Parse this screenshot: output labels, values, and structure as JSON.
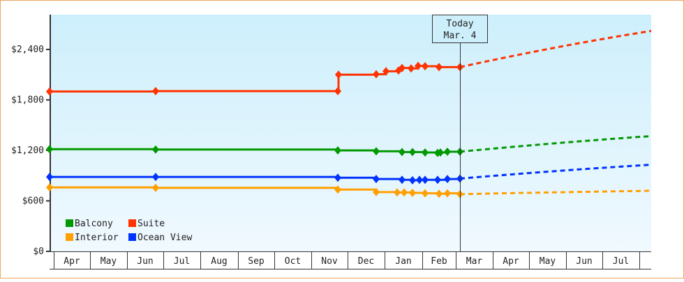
{
  "chart_data": {
    "type": "line",
    "title": "",
    "xlabel": "",
    "ylabel": "",
    "ylim": [
      0,
      2640
    ],
    "y_ticks": [
      "$0",
      "$600",
      "$1,200",
      "$1,800",
      "$2,400"
    ],
    "y_tick_values": [
      0,
      600,
      1200,
      1800,
      2400
    ],
    "x_ticks": [
      "Apr",
      "May",
      "Jun",
      "Jul",
      "Aug",
      "Sep",
      "Oct",
      "Nov",
      "Dec",
      "Jan",
      "Feb",
      "Mar",
      "Apr",
      "May",
      "Jun",
      "Jul"
    ],
    "grid": false,
    "legend_position": "lower-left inside",
    "today_marker": {
      "line1": "Today",
      "line2": "Mar. 4"
    },
    "series": [
      {
        "name": "Balcony",
        "color": "#009900",
        "historical": [
          [
            70,
            1215
          ],
          [
            222,
            1210
          ],
          [
            483,
            1200
          ],
          [
            538,
            1190
          ],
          [
            575,
            1180
          ],
          [
            590,
            1180
          ],
          [
            608,
            1175
          ],
          [
            626,
            1170
          ],
          [
            630,
            1175
          ],
          [
            640,
            1185
          ],
          [
            658,
            1185
          ]
        ],
        "forecast": [
          [
            658,
            1185
          ],
          [
            932,
            1370
          ]
        ]
      },
      {
        "name": "Suite",
        "color": "#ff3300",
        "historical": [
          [
            70,
            1900
          ],
          [
            222,
            1905
          ],
          [
            483,
            1905
          ],
          [
            484,
            2100
          ],
          [
            538,
            2105
          ],
          [
            552,
            2140
          ],
          [
            570,
            2150
          ],
          [
            575,
            2180
          ],
          [
            588,
            2175
          ],
          [
            598,
            2205
          ],
          [
            608,
            2200
          ],
          [
            628,
            2190
          ],
          [
            658,
            2190
          ]
        ],
        "forecast": [
          [
            658,
            2190
          ],
          [
            932,
            2620
          ]
        ]
      },
      {
        "name": "Interior",
        "color": "#ffa000",
        "historical": [
          [
            70,
            760
          ],
          [
            222,
            755
          ],
          [
            483,
            735
          ],
          [
            538,
            705
          ],
          [
            568,
            700
          ],
          [
            578,
            700
          ],
          [
            590,
            695
          ],
          [
            608,
            690
          ],
          [
            628,
            685
          ],
          [
            640,
            690
          ],
          [
            658,
            680
          ]
        ],
        "forecast": [
          [
            658,
            680
          ],
          [
            932,
            720
          ]
        ]
      },
      {
        "name": "Ocean View",
        "color": "#0033ff",
        "historical": [
          [
            70,
            885
          ],
          [
            222,
            885
          ],
          [
            483,
            875
          ],
          [
            538,
            860
          ],
          [
            575,
            850
          ],
          [
            590,
            845
          ],
          [
            600,
            850
          ],
          [
            608,
            850
          ],
          [
            626,
            850
          ],
          [
            640,
            860
          ],
          [
            658,
            865
          ]
        ],
        "forecast": [
          [
            658,
            865
          ],
          [
            932,
            1030
          ]
        ]
      }
    ]
  },
  "legend": [
    {
      "label": "Balcony",
      "color": "#009900"
    },
    {
      "label": "Suite",
      "color": "#ff3300"
    },
    {
      "label": "Interior",
      "color": "#ffa000"
    },
    {
      "label": "Ocean View",
      "color": "#0033ff"
    }
  ]
}
